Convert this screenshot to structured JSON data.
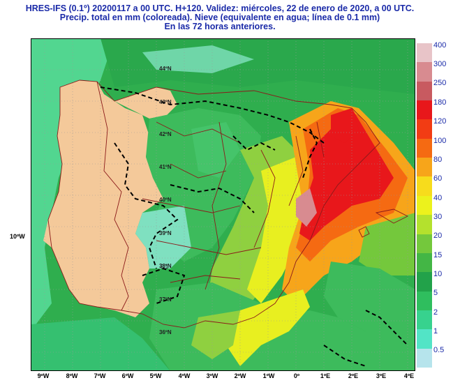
{
  "title": {
    "line1": "HRES-IFS (0.1º) 20200117 a 00 UTC.  H+120. Validez: miércoles, 22 de enero de 2020,  a  00 UTC.",
    "line2": "Precip. total en mm (coloreada). Nieve (equivalente en agua; línea de 0.1 mm)",
    "line3": "En las 72 horas anteriores."
  },
  "x_axis_labels": [
    "9ºW",
    "8ºW",
    "7ºW",
    "6ºW",
    "5ºW",
    "4ºW",
    "3ºW",
    "2ºW",
    "1ºW",
    "0º",
    "1ºE",
    "2ºE",
    "3ºE",
    "4ºE"
  ],
  "y_axis_label": "10ºW",
  "lat_labels": [
    "44ºN",
    "43ºN",
    "42ºN",
    "41ºN",
    "40ºN",
    "39ºN",
    "38ºN",
    "37ºN",
    "36ºN"
  ],
  "snow_contour_label": "0.1",
  "legend": [
    {
      "label": "400",
      "color": "#e8c4c8"
    },
    {
      "label": "300",
      "color": "#d88b90"
    },
    {
      "label": "250",
      "color": "#c85a60"
    },
    {
      "label": "180",
      "color": "#e8171b"
    },
    {
      "label": "120",
      "color": "#f23c14"
    },
    {
      "label": "100",
      "color": "#f56a12"
    },
    {
      "label": "80",
      "color": "#f7a51a"
    },
    {
      "label": "60",
      "color": "#f7dc1c"
    },
    {
      "label": "40",
      "color": "#ecf21c"
    },
    {
      "label": "30",
      "color": "#b4e12d"
    },
    {
      "label": "20",
      "color": "#74c83c"
    },
    {
      "label": "15",
      "color": "#43b645"
    },
    {
      "label": "10",
      "color": "#22a24a"
    },
    {
      "label": "5",
      "color": "#2fbe5e"
    },
    {
      "label": "2",
      "color": "#37d28e"
    },
    {
      "label": "1",
      "color": "#52e4c6"
    },
    {
      "label": "0.5",
      "color": "#b6e4ec"
    }
  ],
  "colors": {
    "land": "#f4c99a",
    "title": "#1a2aa8",
    "border": "#8b1a1a"
  }
}
